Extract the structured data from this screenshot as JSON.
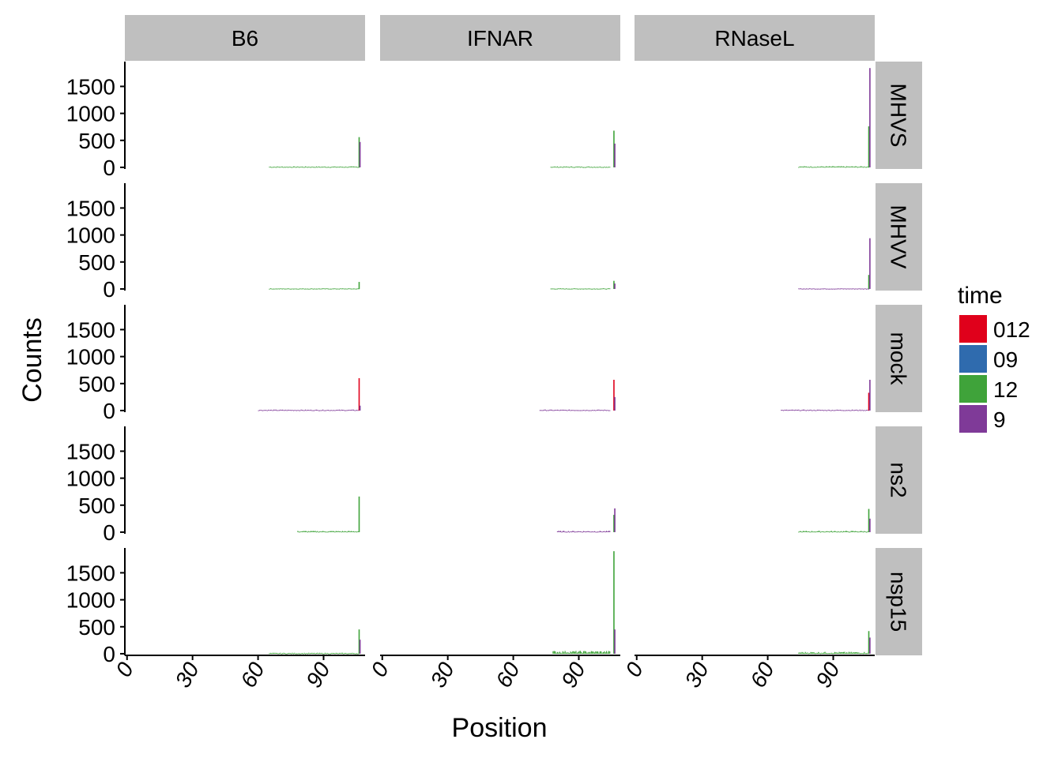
{
  "chart_data": {
    "type": "bar",
    "facet_columns": [
      "B6",
      "IFNAR",
      "RNaseL"
    ],
    "facet_rows": [
      "MHVS",
      "MHVV",
      "mock",
      "ns2",
      "nsp15"
    ],
    "xlabel": "Position",
    "ylabel": "Counts",
    "x_ticks": [
      0,
      30,
      60,
      90
    ],
    "xlim": [
      -1,
      109
    ],
    "y_ticks": [
      0,
      500,
      1000,
      1500
    ],
    "ylim": [
      -30,
      1960
    ],
    "legend": {
      "title": "time",
      "position": "right",
      "items": [
        {
          "label": "012",
          "color": "#E0001B"
        },
        {
          "label": "09",
          "color": "#2F6BAE"
        },
        {
          "label": "12",
          "color": "#3FA33A"
        },
        {
          "label": "9",
          "color": "#7F3A98"
        }
      ]
    },
    "panels": [
      {
        "row": "MHVS",
        "col": "B6",
        "series": "12",
        "baseline_range": [
          65,
          106
        ],
        "baseline": 15,
        "peaks": [
          {
            "x": 106,
            "y": 560,
            "s": "12"
          },
          {
            "x": 106.4,
            "y": 470,
            "s": "9"
          }
        ]
      },
      {
        "row": "MHVS",
        "col": "IFNAR",
        "series": "12",
        "baseline_range": [
          77,
          104
        ],
        "baseline": 15,
        "peaks": [
          {
            "x": 105.8,
            "y": 680,
            "s": "12"
          },
          {
            "x": 106.2,
            "y": 440,
            "s": "9"
          }
        ]
      },
      {
        "row": "MHVS",
        "col": "RNaseL",
        "series": "12",
        "baseline_range": [
          74,
          106
        ],
        "baseline": 18,
        "peaks": [
          {
            "x": 106,
            "y": 760,
            "s": "12"
          },
          {
            "x": 106.5,
            "y": 1840,
            "s": "9"
          }
        ]
      },
      {
        "row": "MHVV",
        "col": "B6",
        "series": "12",
        "baseline_range": [
          65,
          106
        ],
        "baseline": 10,
        "peaks": [
          {
            "x": 106,
            "y": 130,
            "s": "12"
          }
        ]
      },
      {
        "row": "MHVV",
        "col": "IFNAR",
        "series": "12",
        "baseline_range": [
          77,
          104
        ],
        "baseline": 10,
        "peaks": [
          {
            "x": 105.8,
            "y": 150,
            "s": "12"
          },
          {
            "x": 106.2,
            "y": 100,
            "s": "9"
          }
        ]
      },
      {
        "row": "MHVV",
        "col": "RNaseL",
        "series": "9",
        "baseline_range": [
          74,
          106
        ],
        "baseline": 10,
        "peaks": [
          {
            "x": 106,
            "y": 260,
            "s": "12"
          },
          {
            "x": 106.5,
            "y": 940,
            "s": "9"
          }
        ]
      },
      {
        "row": "mock",
        "col": "B6",
        "series": "9",
        "baseline_range": [
          60,
          106
        ],
        "baseline": 15,
        "peaks": [
          {
            "x": 106,
            "y": 600,
            "s": "012"
          },
          {
            "x": 106.4,
            "y": 90,
            "s": "9"
          }
        ]
      },
      {
        "row": "mock",
        "col": "IFNAR",
        "series": "9",
        "baseline_range": [
          72,
          104
        ],
        "baseline": 15,
        "peaks": [
          {
            "x": 105.8,
            "y": 570,
            "s": "012"
          },
          {
            "x": 106.2,
            "y": 250,
            "s": "9"
          }
        ]
      },
      {
        "row": "mock",
        "col": "RNaseL",
        "series": "9",
        "baseline_range": [
          66,
          106
        ],
        "baseline": 15,
        "peaks": [
          {
            "x": 106,
            "y": 330,
            "s": "012"
          },
          {
            "x": 106.5,
            "y": 570,
            "s": "9"
          }
        ]
      },
      {
        "row": "ns2",
        "col": "B6",
        "series": "12",
        "baseline_range": [
          78,
          106
        ],
        "baseline": 20,
        "peaks": [
          {
            "x": 106,
            "y": 660,
            "s": "12"
          }
        ]
      },
      {
        "row": "ns2",
        "col": "IFNAR",
        "series": "9",
        "baseline_range": [
          80,
          104
        ],
        "baseline": 20,
        "peaks": [
          {
            "x": 105.8,
            "y": 320,
            "s": "12"
          },
          {
            "x": 106.2,
            "y": 440,
            "s": "9"
          }
        ]
      },
      {
        "row": "ns2",
        "col": "RNaseL",
        "series": "12",
        "baseline_range": [
          74,
          106
        ],
        "baseline": 20,
        "peaks": [
          {
            "x": 106,
            "y": 430,
            "s": "12"
          },
          {
            "x": 106.5,
            "y": 250,
            "s": "9"
          }
        ]
      },
      {
        "row": "nsp15",
        "col": "B6",
        "series": "12",
        "baseline_range": [
          65,
          106
        ],
        "baseline": 15,
        "peaks": [
          {
            "x": 106,
            "y": 450,
            "s": "12"
          },
          {
            "x": 106.4,
            "y": 260,
            "s": "9"
          }
        ]
      },
      {
        "row": "nsp15",
        "col": "IFNAR",
        "series": "12",
        "baseline_range": [
          78,
          104
        ],
        "baseline": 45,
        "peaks": [
          {
            "x": 105.8,
            "y": 1900,
            "s": "12"
          },
          {
            "x": 106.2,
            "y": 450,
            "s": "9"
          }
        ]
      },
      {
        "row": "nsp15",
        "col": "RNaseL",
        "series": "12",
        "baseline_range": [
          74,
          106
        ],
        "baseline": 30,
        "peaks": [
          {
            "x": 106,
            "y": 420,
            "s": "12"
          },
          {
            "x": 106.5,
            "y": 300,
            "s": "9"
          }
        ]
      }
    ]
  }
}
